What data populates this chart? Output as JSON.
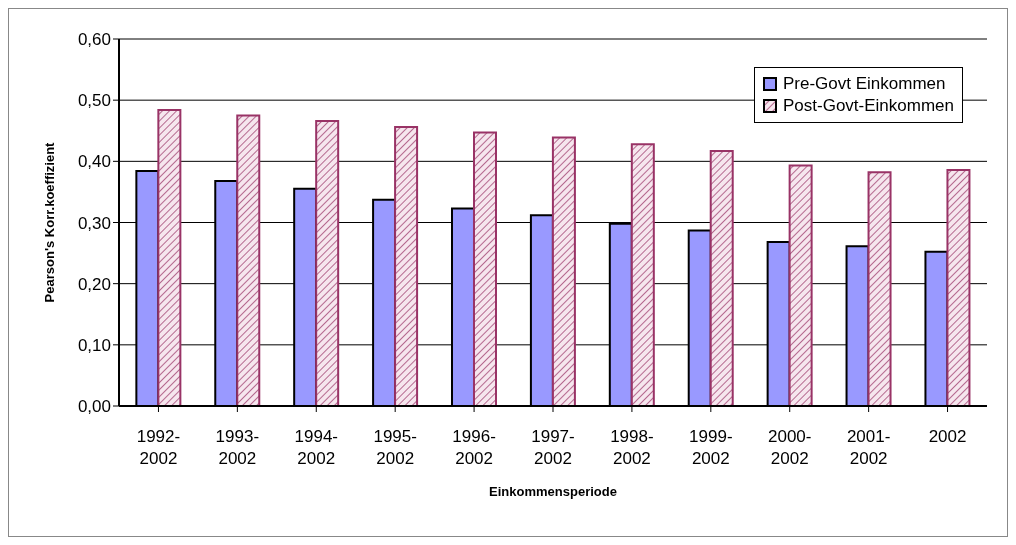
{
  "chart_data": {
    "type": "bar",
    "xlabel": "Einkommensperiode",
    "ylabel": "Pearson's Korr.koeffizient",
    "categories": [
      "1992-2002",
      "1993-2002",
      "1994-2002",
      "1995-2002",
      "1996-2002",
      "1997-2002",
      "1998-2002",
      "1999-2002",
      "2000-2002",
      "2001-2002",
      "2002"
    ],
    "series": [
      {
        "name": "Pre-Govt Einkommen",
        "color": "#9999ff",
        "values": [
          0.384,
          0.368,
          0.355,
          0.337,
          0.323,
          0.312,
          0.298,
          0.287,
          0.268,
          0.261,
          0.252
        ]
      },
      {
        "name": "Post-Govt-Einkommen",
        "color": "#993366",
        "values": [
          0.484,
          0.475,
          0.466,
          0.456,
          0.447,
          0.439,
          0.428,
          0.417,
          0.393,
          0.382,
          0.386
        ]
      }
    ],
    "ylim": [
      0,
      0.6
    ],
    "yticks": [
      {
        "value": 0,
        "label": "0,00"
      },
      {
        "value": 0.1,
        "label": "0,10"
      },
      {
        "value": 0.2,
        "label": "0,20"
      },
      {
        "value": 0.3,
        "label": "0,30"
      },
      {
        "value": 0.4,
        "label": "0,40"
      },
      {
        "value": 0.5,
        "label": "0,50"
      },
      {
        "value": 0.6,
        "label": "0,60"
      }
    ],
    "grid": "y",
    "legend": "top right"
  }
}
